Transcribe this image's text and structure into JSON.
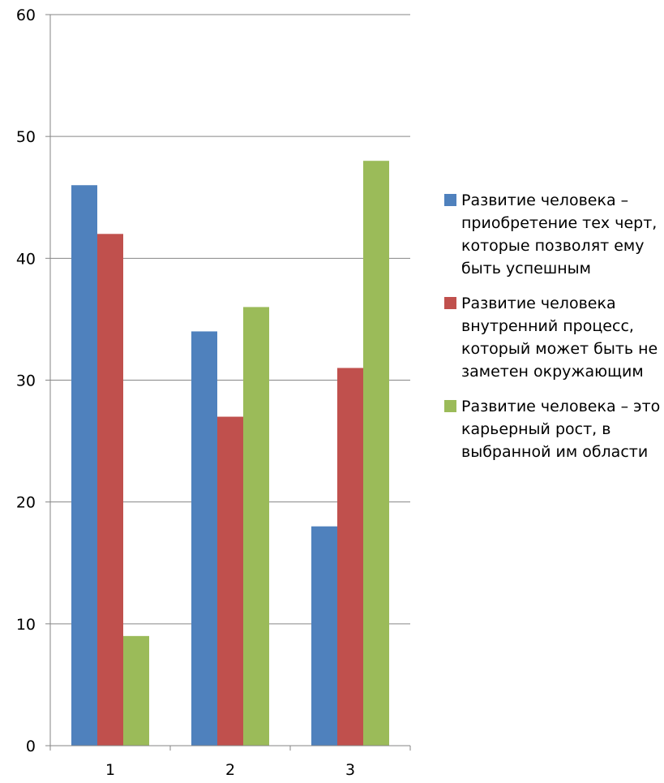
{
  "chart_data": {
    "type": "bar",
    "categories": [
      "1",
      "2",
      "3"
    ],
    "series": [
      {
        "name": "Развитие человека – приобретение тех черт, которые позволят ему быть успешным",
        "values": [
          46,
          34,
          18
        ],
        "color": "#4f81bd"
      },
      {
        "name": "Развитие человека внутренний процесс, который может быть не заметен окружающим",
        "values": [
          42,
          27,
          31
        ],
        "color": "#c0504d"
      },
      {
        "name": "Развитие человека – это карьерный рост, в выбранной им области",
        "values": [
          9,
          36,
          48
        ],
        "color": "#9bbb59"
      }
    ],
    "title": "",
    "xlabel": "",
    "ylabel": "",
    "ylim": [
      0,
      60
    ],
    "yticks": [
      "0",
      "10",
      "20",
      "30",
      "40",
      "50",
      "60"
    ],
    "grid": true,
    "legend_position": "right"
  }
}
